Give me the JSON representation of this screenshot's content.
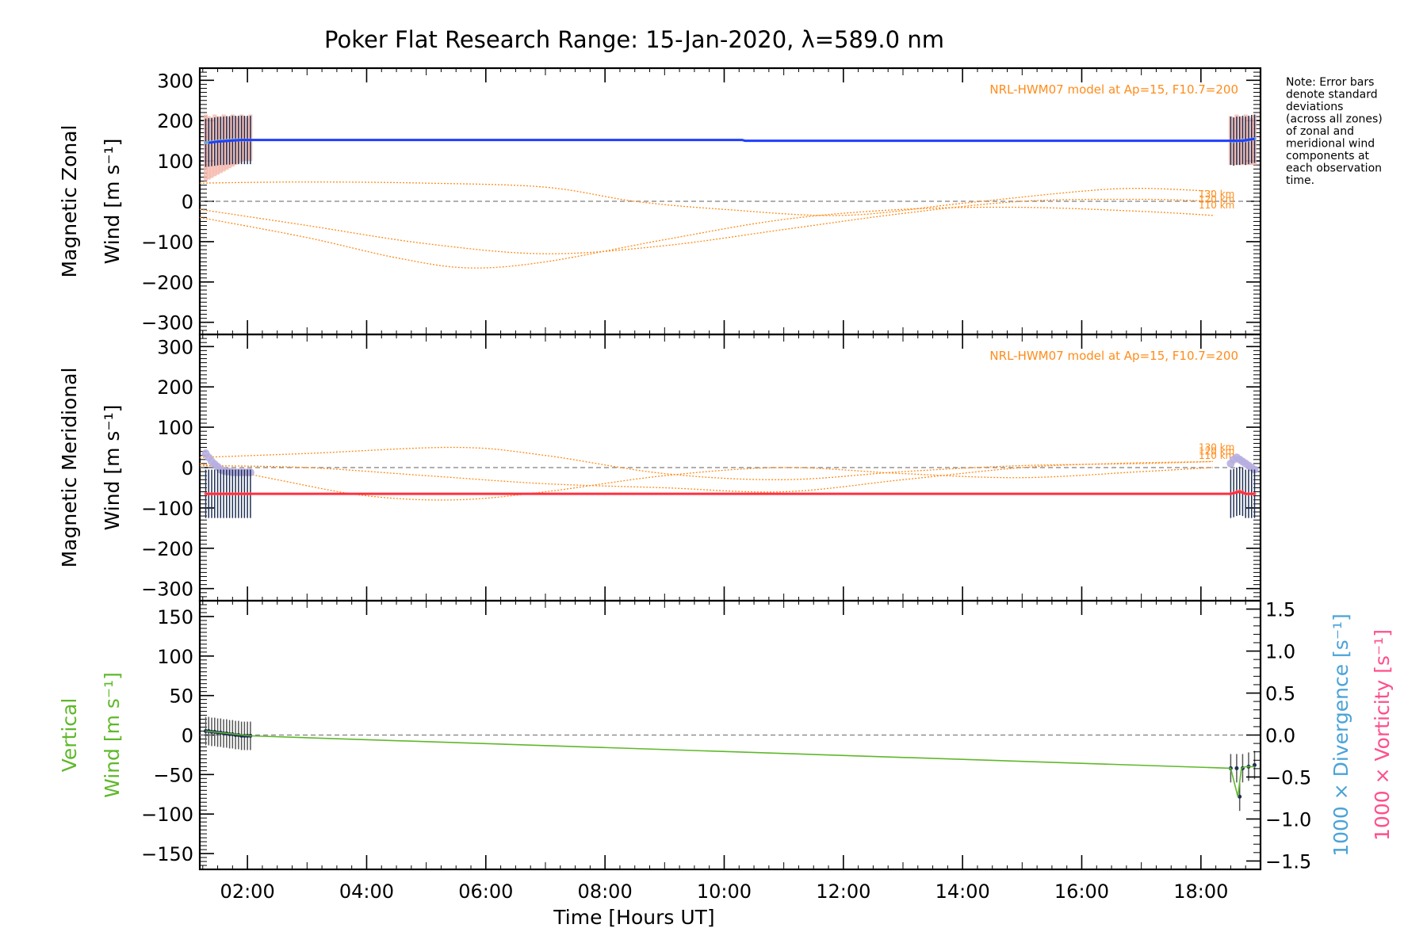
{
  "colors": {
    "zonal": "#1f3fff",
    "meridional": "#ff3040",
    "vertical": "#5fb82a",
    "model": "#ff8c1a",
    "divergence": "#4aa3d8",
    "vorticity": "#ff4f8b",
    "errorbar": "#1d2f55",
    "zonal_spread": "#f5b8ac",
    "meridional_spread": "#b7aee0",
    "zero_line": "#7f7f7f"
  },
  "chart_data": {
    "title": "Poker Flat Research Range: 15-Jan-2020, λ=589.0 nm",
    "xlabel": "Time [Hours UT]",
    "xlim": [
      1.2,
      19.0
    ],
    "x_ticks": [
      2,
      4,
      6,
      8,
      10,
      12,
      14,
      16,
      18
    ],
    "x_tick_labels": [
      "02:00",
      "04:00",
      "06:00",
      "08:00",
      "10:00",
      "12:00",
      "14:00",
      "16:00",
      "18:00"
    ],
    "note": [
      "Note: Error bars",
      "denote standard",
      "deviations",
      "(across all zones)",
      "of zonal and",
      "meridional wind",
      "components at",
      "each observation",
      "time."
    ],
    "panels": [
      {
        "id": "zonal",
        "ylabel_line1": "Magnetic Zonal",
        "ylabel_line2": "Wind [m s⁻¹]",
        "ylim": [
          -330,
          330
        ],
        "y_ticks": [
          -300,
          -200,
          -100,
          0,
          100,
          200,
          300
        ],
        "y_tick_labels": [
          "−300",
          "−200",
          "−100",
          "0",
          "100",
          "200",
          "300"
        ],
        "model_label": "NRL-HWM07 model at Ap=15, F10.7=200",
        "series": {
          "name": "Zonal wind",
          "x": [
            1.35,
            1.5,
            1.7,
            1.9,
            2.05,
            10.3,
            10.35,
            18.5,
            18.7,
            18.9
          ],
          "values": [
            145,
            148,
            150,
            152,
            152,
            152,
            150,
            150,
            150,
            155
          ]
        },
        "obs_times": [
          1.3,
          1.35,
          1.4,
          1.45,
          1.5,
          1.55,
          1.6,
          1.65,
          1.7,
          1.75,
          1.8,
          1.85,
          1.9,
          1.95,
          2.0,
          2.05,
          18.5,
          18.55,
          18.6,
          18.65,
          18.7,
          18.75,
          18.8,
          18.85,
          18.9
        ],
        "obs_values": [
          145,
          146,
          147,
          148,
          149,
          150,
          150,
          151,
          151,
          152,
          152,
          152,
          152,
          152,
          152,
          152,
          150,
          148,
          150,
          150,
          152,
          150,
          152,
          154,
          155
        ],
        "error": 60,
        "spread_upper": 215,
        "spread_lower_start": 50,
        "model_curves": [
          {
            "altitude": "130 km",
            "x": [
              1.2,
              3,
              5,
              7,
              8.5,
              10,
              12,
              14,
              16,
              17,
              18.2
            ],
            "values": [
              45,
              48,
              45,
              35,
              0,
              -20,
              -35,
              -5,
              25,
              32,
              25
            ]
          },
          {
            "altitude": "120 km",
            "x": [
              1.2,
              3,
              5,
              7,
              9,
              11,
              13,
              15,
              17,
              18.2
            ],
            "values": [
              -20,
              -60,
              -105,
              -130,
              -110,
              -70,
              -30,
              0,
              5,
              0
            ]
          },
          {
            "altitude": "110 km",
            "x": [
              1.2,
              3,
              4.5,
              5.7,
              7,
              9,
              11,
              13,
              15,
              17,
              18.2
            ],
            "values": [
              -40,
              -90,
              -140,
              -165,
              -150,
              -95,
              -45,
              -20,
              -15,
              -25,
              -35
            ]
          }
        ]
      },
      {
        "id": "meridional",
        "ylabel_line1": "Magnetic Meridional",
        "ylabel_line2": "Wind [m s⁻¹]",
        "ylim": [
          -330,
          330
        ],
        "y_ticks": [
          -300,
          -200,
          -100,
          0,
          100,
          200,
          300
        ],
        "y_tick_labels": [
          "−300",
          "−200",
          "−100",
          "0",
          "100",
          "200",
          "300"
        ],
        "model_label": "NRL-HWM07 model at Ap=15, F10.7=200",
        "series": {
          "name": "Meridional wind",
          "x": [
            1.3,
            2.05,
            18.5,
            18.65,
            18.75,
            18.9
          ],
          "values": [
            -65,
            -65,
            -65,
            -60,
            -65,
            -65
          ]
        },
        "obs_times": [
          1.3,
          1.35,
          1.4,
          1.45,
          1.5,
          1.55,
          1.6,
          1.65,
          1.7,
          1.75,
          1.8,
          1.85,
          1.9,
          1.95,
          2.0,
          2.05,
          18.5,
          18.55,
          18.6,
          18.65,
          18.7,
          18.75,
          18.8,
          18.85,
          18.9
        ],
        "obs_values": [
          -65,
          -65,
          -65,
          -65,
          -65,
          -65,
          -65,
          -65,
          -65,
          -65,
          -65,
          -65,
          -65,
          -65,
          -65,
          -65,
          -65,
          -63,
          -60,
          -58,
          -60,
          -65,
          -65,
          -65,
          -65
        ],
        "error": 60,
        "spread_values": [
          35,
          25,
          15,
          8,
          2,
          -5,
          -8,
          -10,
          -10,
          -12,
          -12,
          -12,
          -12,
          -12,
          -12,
          -12,
          10,
          20,
          25,
          20,
          15,
          10,
          5,
          0,
          -5
        ],
        "model_curves": [
          {
            "altitude": "130 km",
            "x": [
              1.2,
              3,
              5.5,
              7,
              9,
              11,
              13,
              15,
              17,
              18.2
            ],
            "values": [
              25,
              35,
              50,
              30,
              -15,
              -30,
              -10,
              5,
              10,
              15
            ]
          },
          {
            "altitude": "120 km",
            "x": [
              1.2,
              2.5,
              4,
              5.5,
              7,
              9,
              11,
              13,
              15,
              17,
              18.2
            ],
            "values": [
              10,
              -30,
              -70,
              -80,
              -60,
              -20,
              0,
              -15,
              -25,
              -10,
              0
            ]
          },
          {
            "altitude": "110 km",
            "x": [
              1.2,
              3,
              5,
              7,
              9,
              11,
              13,
              15,
              16.5,
              18.2
            ],
            "values": [
              5,
              0,
              -20,
              -40,
              -50,
              -60,
              -30,
              0,
              10,
              15
            ]
          }
        ]
      },
      {
        "id": "vertical",
        "ylabel_line1": "Vertical",
        "ylabel_line2": "Wind [m s⁻¹]",
        "ylim": [
          -170,
          170
        ],
        "y_ticks": [
          -150,
          -100,
          -50,
          0,
          50,
          100,
          150
        ],
        "y_tick_labels": [
          "−150",
          "−100",
          "−50",
          "0",
          "50",
          "100",
          "150"
        ],
        "y2lim": [
          -1.6,
          1.6
        ],
        "y2_ticks": [
          -1.5,
          -1.0,
          -0.5,
          0.0,
          0.5,
          1.0,
          1.5
        ],
        "y2_tick_labels": [
          "−1.5",
          "−1.0",
          "−0.5",
          "0.0",
          "0.5",
          "1.0",
          "1.5"
        ],
        "y2label_divergence": "1000 × Divergence [s⁻¹]",
        "y2label_vorticity": "1000 × Vorticity [s⁻¹]",
        "series": {
          "name": "Vertical wind",
          "x": [
            1.3,
            2.05,
            18.5,
            18.62,
            18.68,
            18.75,
            18.9
          ],
          "values": [
            5,
            -1,
            -42,
            -78,
            -42,
            -40,
            -40
          ]
        },
        "obs_times": [
          1.3,
          1.35,
          1.4,
          1.45,
          1.5,
          1.55,
          1.6,
          1.65,
          1.7,
          1.75,
          1.8,
          1.85,
          1.9,
          1.95,
          2.0,
          2.05,
          18.5,
          18.6,
          18.65,
          18.7,
          18.8,
          18.9
        ],
        "obs_values": [
          5,
          5,
          4,
          4,
          3,
          3,
          2,
          2,
          1,
          1,
          0,
          0,
          -1,
          -1,
          -1,
          -1,
          -42,
          -42,
          -78,
          -42,
          -40,
          -38
        ],
        "error": 18
      }
    ]
  }
}
